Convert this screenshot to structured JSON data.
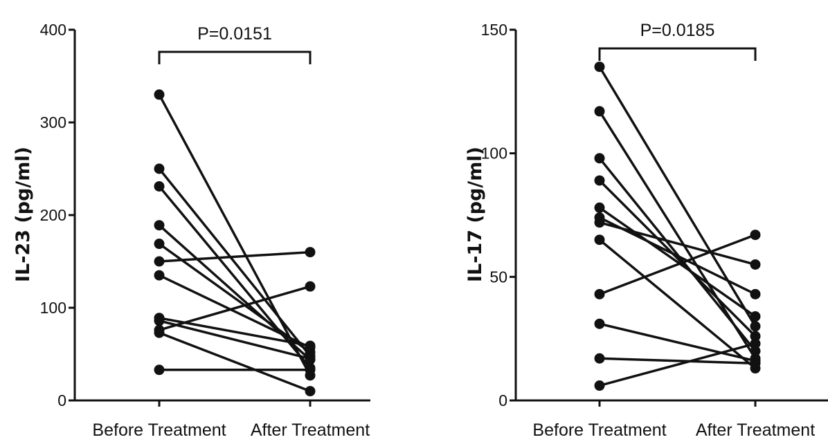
{
  "chart_data": [
    {
      "type": "line",
      "title": "",
      "ylabel": "IL-23 (pg/ml)",
      "ylim": [
        0,
        400
      ],
      "yticks": [
        0,
        100,
        200,
        300,
        400
      ],
      "categories": [
        "Before Treatment",
        "After Treatment"
      ],
      "significance_label": "P=0.0151",
      "series": [
        {
          "values": [
            330,
            27
          ]
        },
        {
          "values": [
            250,
            48
          ]
        },
        {
          "values": [
            231,
            35
          ]
        },
        {
          "values": [
            189,
            44
          ]
        },
        {
          "values": [
            169,
            52
          ]
        },
        {
          "values": [
            150,
            160
          ]
        },
        {
          "values": [
            135,
            57
          ]
        },
        {
          "values": [
            89,
            59
          ]
        },
        {
          "values": [
            86,
            45
          ]
        },
        {
          "values": [
            76,
            123
          ]
        },
        {
          "values": [
            73,
            10
          ]
        },
        {
          "values": [
            33,
            33
          ]
        }
      ]
    },
    {
      "type": "line",
      "title": "",
      "ylabel": "IL-17 (pg/ml)",
      "ylim": [
        0,
        150
      ],
      "yticks": [
        0,
        50,
        100,
        150
      ],
      "categories": [
        "Before Treatment",
        "After Treatment"
      ],
      "significance_label": "P=0.0185",
      "series": [
        {
          "values": [
            135,
            30
          ]
        },
        {
          "values": [
            117,
            17
          ]
        },
        {
          "values": [
            98,
            20
          ]
        },
        {
          "values": [
            89,
            26
          ]
        },
        {
          "values": [
            78,
            34
          ]
        },
        {
          "values": [
            74,
            43
          ]
        },
        {
          "values": [
            72,
            55
          ]
        },
        {
          "values": [
            65,
            13
          ]
        },
        {
          "values": [
            43,
            67
          ]
        },
        {
          "values": [
            31,
            16
          ]
        },
        {
          "values": [
            17,
            15
          ]
        },
        {
          "values": [
            6,
            23
          ]
        }
      ]
    }
  ]
}
